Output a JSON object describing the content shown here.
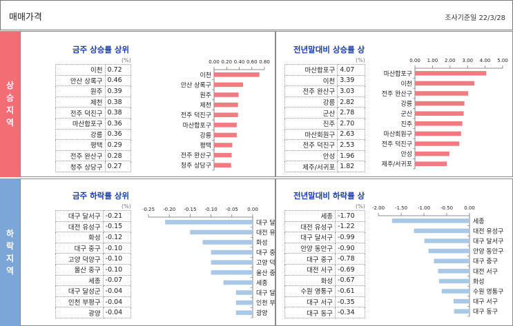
{
  "header": {
    "title": "매매가격",
    "date": "조사기준일 22/3/28"
  },
  "side": {
    "up": [
      "상",
      "승",
      "지",
      "역"
    ],
    "down": [
      "하",
      "락",
      "지",
      "역"
    ]
  },
  "colors": {
    "up_side": "#f26e74",
    "down_side": "#7da6d8",
    "up_bar": "#f27b81",
    "down_bar": "#a9c8e8",
    "title": "#1a3db0"
  },
  "unit": "(%)",
  "chart_data": [
    {
      "type": "bar",
      "orientation": "horizontal",
      "title": "금주 상승률 상위",
      "categories": [
        "이천",
        "안산 상록구",
        "원주",
        "제천",
        "전주 덕진구",
        "마산합포구",
        "강릉",
        "평택",
        "전주 완산구",
        "청주 상당구"
      ],
      "labels": [
        "0.72",
        "0.46",
        "0.39",
        "0.38",
        "0.38",
        "0.36",
        "0.36",
        "0.29",
        "0.28",
        "0.27"
      ],
      "values": [
        0.72,
        0.46,
        0.39,
        0.38,
        0.38,
        0.36,
        0.36,
        0.29,
        0.28,
        0.27
      ],
      "xlim": [
        0,
        0.8
      ],
      "xticks": [
        "0.00",
        "0.20",
        "0.40",
        "0.60",
        "0.80"
      ]
    },
    {
      "type": "bar",
      "orientation": "horizontal",
      "title": "전년말대비 상승률 상",
      "categories": [
        "마산합포구",
        "이천",
        "전주 완산구",
        "강릉",
        "군산",
        "진주",
        "마산회원구",
        "전주 덕진구",
        "안성",
        "제주/서귀포"
      ],
      "labels": [
        "4.07",
        "3.39",
        "3.03",
        "2.82",
        "2.78",
        "2.70",
        "2.63",
        "2.53",
        "1.96",
        "1.82"
      ],
      "values": [
        4.07,
        3.39,
        3.03,
        2.82,
        2.78,
        2.7,
        2.63,
        2.53,
        1.96,
        1.82
      ],
      "xlim": [
        0,
        5
      ],
      "xticks": [
        "0.00",
        "1.00",
        "2.00",
        "3.00",
        "4.00",
        "5.00"
      ]
    },
    {
      "type": "bar",
      "orientation": "horizontal",
      "title": "금주 하락률 상위",
      "categories": [
        "대구 달서구",
        "대전 유성구",
        "화성",
        "대구 중구",
        "고양 덕양구",
        "울산 중구",
        "세종",
        "대구 달성군",
        "인천 부평구",
        "광양"
      ],
      "labels": [
        "-0.21",
        "-0.15",
        "-0.12",
        "-0.10",
        "-0.10",
        "-0.10",
        "-0.07",
        "-0.04",
        "-0.04",
        "-0.04"
      ],
      "values": [
        -0.21,
        -0.15,
        -0.12,
        -0.1,
        -0.1,
        -0.1,
        -0.07,
        -0.04,
        -0.04,
        -0.04
      ],
      "xlim": [
        -0.25,
        0
      ],
      "xticks": [
        "-0.25",
        "-0.20",
        "-0.15",
        "-0.10",
        "-0.05",
        "0.00"
      ]
    },
    {
      "type": "bar",
      "orientation": "horizontal",
      "title": "전년말대비 하락률 상",
      "categories": [
        "세종",
        "대전 유성구",
        "대구 달서구",
        "안양 동안구",
        "대구 중구",
        "대전 서구",
        "화성",
        "수원 영통구",
        "대구 서구",
        "대구 동구"
      ],
      "labels": [
        "-1.70",
        "-1.22",
        "-0.99",
        "-0.90",
        "-0.78",
        "-0.69",
        "-0.67",
        "-0.61",
        "-0.35",
        "-0.34"
      ],
      "values": [
        -1.7,
        -1.22,
        -0.99,
        -0.9,
        -0.78,
        -0.69,
        -0.67,
        -0.61,
        -0.35,
        -0.34
      ],
      "xlim": [
        -2,
        0
      ],
      "xticks": [
        "-2.00",
        "-1.50",
        "-1.00",
        "-0.50",
        "0.00"
      ]
    }
  ]
}
